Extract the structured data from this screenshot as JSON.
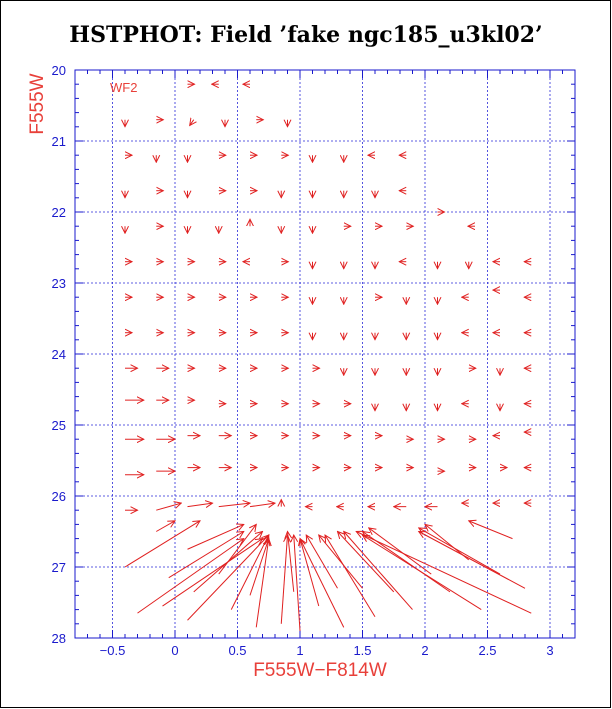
{
  "title": "HSTPHOT: Field ’fake ngc185_u3kl02’",
  "colors": {
    "axis": "#1a1acc",
    "grid": "#2a2ad8",
    "arrows": "#e02020",
    "labels": "#e8403a"
  },
  "chart_data": {
    "type": "scatter",
    "subtype": "vector-field",
    "title": "HSTPHOT: Field ’fake ngc185_u3kl02’",
    "panel_label": "WF2",
    "xlabel": "F555W−F814W",
    "ylabel": "F555W",
    "xlim": [
      -0.8,
      3.2
    ],
    "ylim": [
      28,
      20
    ],
    "y_inverted": true,
    "grid": true,
    "xticks": [
      -0.5,
      0,
      0.5,
      1,
      1.5,
      2,
      2.5,
      3
    ],
    "xtick_labels": [
      "−0.5",
      "0",
      "0.5",
      "1",
      "1.5",
      "2",
      "2.5",
      "3"
    ],
    "yticks": [
      20,
      21,
      22,
      23,
      24,
      25,
      26,
      27,
      28
    ],
    "ytick_labels": [
      "20",
      "21",
      "22",
      "23",
      "24",
      "25",
      "26",
      "27",
      "28"
    ],
    "vectors": [
      {
        "x": 0.1,
        "y": 20.2,
        "dx": 0.05,
        "dy": 0.0
      },
      {
        "x": 0.35,
        "y": 20.2,
        "dx": -0.05,
        "dy": 0.0
      },
      {
        "x": 0.6,
        "y": 20.2,
        "dx": -0.05,
        "dy": 0.0
      },
      {
        "x": -0.4,
        "y": 20.7,
        "dx": 0.0,
        "dy": 0.05
      },
      {
        "x": -0.15,
        "y": 20.7,
        "dx": 0.05,
        "dy": 0.0
      },
      {
        "x": 0.15,
        "y": 20.7,
        "dx": -0.02,
        "dy": 0.05
      },
      {
        "x": 0.4,
        "y": 20.7,
        "dx": 0.0,
        "dy": 0.05
      },
      {
        "x": 0.65,
        "y": 20.7,
        "dx": 0.05,
        "dy": 0.0
      },
      {
        "x": 0.9,
        "y": 20.7,
        "dx": 0.0,
        "dy": 0.05
      },
      {
        "x": -0.4,
        "y": 21.2,
        "dx": 0.05,
        "dy": 0.0
      },
      {
        "x": -0.15,
        "y": 21.2,
        "dx": 0.0,
        "dy": 0.05
      },
      {
        "x": 0.1,
        "y": 21.2,
        "dx": 0.0,
        "dy": 0.05
      },
      {
        "x": 0.35,
        "y": 21.2,
        "dx": 0.05,
        "dy": 0.0
      },
      {
        "x": 0.6,
        "y": 21.2,
        "dx": 0.05,
        "dy": 0.0
      },
      {
        "x": 0.85,
        "y": 21.2,
        "dx": 0.05,
        "dy": 0.0
      },
      {
        "x": 1.1,
        "y": 21.2,
        "dx": 0.0,
        "dy": 0.05
      },
      {
        "x": 1.35,
        "y": 21.2,
        "dx": 0.0,
        "dy": 0.05
      },
      {
        "x": 1.6,
        "y": 21.2,
        "dx": -0.05,
        "dy": 0.0
      },
      {
        "x": 1.85,
        "y": 21.2,
        "dx": -0.05,
        "dy": 0.0
      },
      {
        "x": -0.4,
        "y": 21.7,
        "dx": 0.0,
        "dy": 0.05
      },
      {
        "x": -0.15,
        "y": 21.7,
        "dx": 0.05,
        "dy": 0.0
      },
      {
        "x": 0.1,
        "y": 21.7,
        "dx": 0.0,
        "dy": 0.05
      },
      {
        "x": 0.35,
        "y": 21.7,
        "dx": 0.05,
        "dy": 0.0
      },
      {
        "x": 0.6,
        "y": 21.7,
        "dx": 0.05,
        "dy": 0.0
      },
      {
        "x": 0.85,
        "y": 21.7,
        "dx": 0.0,
        "dy": 0.05
      },
      {
        "x": 1.1,
        "y": 21.7,
        "dx": 0.0,
        "dy": 0.05
      },
      {
        "x": 1.35,
        "y": 21.7,
        "dx": 0.0,
        "dy": 0.05
      },
      {
        "x": 1.6,
        "y": 21.7,
        "dx": 0.0,
        "dy": 0.05
      },
      {
        "x": 1.85,
        "y": 21.7,
        "dx": -0.05,
        "dy": 0.0
      },
      {
        "x": -0.4,
        "y": 22.2,
        "dx": 0.0,
        "dy": 0.05
      },
      {
        "x": -0.15,
        "y": 22.2,
        "dx": 0.05,
        "dy": 0.0
      },
      {
        "x": 0.1,
        "y": 22.2,
        "dx": 0.0,
        "dy": 0.05
      },
      {
        "x": 0.35,
        "y": 22.2,
        "dx": 0.0,
        "dy": 0.05
      },
      {
        "x": 0.6,
        "y": 22.2,
        "dx": 0.0,
        "dy": -0.05
      },
      {
        "x": 0.85,
        "y": 22.2,
        "dx": 0.0,
        "dy": 0.05
      },
      {
        "x": 1.1,
        "y": 22.2,
        "dx": 0.0,
        "dy": 0.05
      },
      {
        "x": 1.35,
        "y": 22.2,
        "dx": 0.05,
        "dy": 0.0
      },
      {
        "x": 1.6,
        "y": 22.2,
        "dx": 0.05,
        "dy": 0.0
      },
      {
        "x": 1.85,
        "y": 22.2,
        "dx": 0.05,
        "dy": 0.0
      },
      {
        "x": 2.1,
        "y": 22.0,
        "dx": 0.05,
        "dy": 0.0
      },
      {
        "x": 2.4,
        "y": 22.2,
        "dx": -0.05,
        "dy": 0.0
      },
      {
        "x": -0.4,
        "y": 22.7,
        "dx": 0.05,
        "dy": 0.0
      },
      {
        "x": -0.15,
        "y": 22.7,
        "dx": 0.05,
        "dy": 0.0
      },
      {
        "x": 0.1,
        "y": 22.7,
        "dx": 0.05,
        "dy": 0.0
      },
      {
        "x": 0.35,
        "y": 22.7,
        "dx": 0.05,
        "dy": 0.0
      },
      {
        "x": 0.6,
        "y": 22.7,
        "dx": -0.05,
        "dy": 0.0
      },
      {
        "x": 0.85,
        "y": 22.7,
        "dx": 0.05,
        "dy": 0.0
      },
      {
        "x": 1.1,
        "y": 22.7,
        "dx": 0.0,
        "dy": 0.05
      },
      {
        "x": 1.35,
        "y": 22.7,
        "dx": 0.0,
        "dy": 0.05
      },
      {
        "x": 1.6,
        "y": 22.7,
        "dx": 0.0,
        "dy": 0.05
      },
      {
        "x": 1.85,
        "y": 22.7,
        "dx": -0.05,
        "dy": 0.0
      },
      {
        "x": 2.1,
        "y": 22.7,
        "dx": 0.0,
        "dy": 0.05
      },
      {
        "x": 2.35,
        "y": 22.7,
        "dx": 0.0,
        "dy": 0.05
      },
      {
        "x": 2.6,
        "y": 22.7,
        "dx": -0.05,
        "dy": 0.0
      },
      {
        "x": 2.85,
        "y": 22.7,
        "dx": -0.05,
        "dy": 0.0
      },
      {
        "x": -0.4,
        "y": 23.2,
        "dx": 0.05,
        "dy": 0.0
      },
      {
        "x": -0.15,
        "y": 23.2,
        "dx": 0.05,
        "dy": 0.0
      },
      {
        "x": 0.1,
        "y": 23.2,
        "dx": 0.05,
        "dy": 0.0
      },
      {
        "x": 0.35,
        "y": 23.2,
        "dx": 0.05,
        "dy": 0.0
      },
      {
        "x": 0.6,
        "y": 23.2,
        "dx": 0.05,
        "dy": 0.0
      },
      {
        "x": 0.85,
        "y": 23.2,
        "dx": 0.05,
        "dy": 0.0
      },
      {
        "x": 1.1,
        "y": 23.2,
        "dx": 0.0,
        "dy": 0.05
      },
      {
        "x": 1.35,
        "y": 23.2,
        "dx": 0.0,
        "dy": 0.05
      },
      {
        "x": 1.6,
        "y": 23.2,
        "dx": 0.05,
        "dy": 0.0
      },
      {
        "x": 1.85,
        "y": 23.2,
        "dx": 0.0,
        "dy": 0.05
      },
      {
        "x": 2.1,
        "y": 23.2,
        "dx": 0.0,
        "dy": 0.05
      },
      {
        "x": 2.35,
        "y": 23.2,
        "dx": -0.05,
        "dy": 0.0
      },
      {
        "x": 2.6,
        "y": 23.1,
        "dx": -0.05,
        "dy": 0.0
      },
      {
        "x": 2.85,
        "y": 23.2,
        "dx": -0.05,
        "dy": 0.0
      },
      {
        "x": -0.4,
        "y": 23.7,
        "dx": 0.05,
        "dy": 0.0
      },
      {
        "x": -0.15,
        "y": 23.7,
        "dx": 0.05,
        "dy": 0.0
      },
      {
        "x": 0.1,
        "y": 23.7,
        "dx": 0.05,
        "dy": 0.0
      },
      {
        "x": 0.35,
        "y": 23.7,
        "dx": 0.05,
        "dy": 0.0
      },
      {
        "x": 0.6,
        "y": 23.7,
        "dx": 0.05,
        "dy": 0.0
      },
      {
        "x": 0.85,
        "y": 23.7,
        "dx": 0.05,
        "dy": 0.0
      },
      {
        "x": 1.1,
        "y": 23.7,
        "dx": 0.0,
        "dy": 0.05
      },
      {
        "x": 1.35,
        "y": 23.7,
        "dx": 0.0,
        "dy": 0.05
      },
      {
        "x": 1.6,
        "y": 23.7,
        "dx": 0.0,
        "dy": 0.05
      },
      {
        "x": 1.85,
        "y": 23.7,
        "dx": 0.0,
        "dy": 0.05
      },
      {
        "x": 2.1,
        "y": 23.7,
        "dx": 0.0,
        "dy": 0.05
      },
      {
        "x": 2.35,
        "y": 23.7,
        "dx": -0.05,
        "dy": 0.0
      },
      {
        "x": 2.6,
        "y": 23.7,
        "dx": -0.05,
        "dy": 0.0
      },
      {
        "x": 2.85,
        "y": 23.7,
        "dx": -0.05,
        "dy": 0.0
      },
      {
        "x": -0.4,
        "y": 24.2,
        "dx": 0.1,
        "dy": 0.0
      },
      {
        "x": -0.15,
        "y": 24.2,
        "dx": 0.1,
        "dy": 0.0
      },
      {
        "x": 0.1,
        "y": 24.2,
        "dx": 0.05,
        "dy": 0.0
      },
      {
        "x": 0.35,
        "y": 24.2,
        "dx": 0.05,
        "dy": 0.0
      },
      {
        "x": 0.6,
        "y": 24.2,
        "dx": 0.05,
        "dy": 0.0
      },
      {
        "x": 0.85,
        "y": 24.2,
        "dx": 0.05,
        "dy": 0.0
      },
      {
        "x": 1.1,
        "y": 24.2,
        "dx": 0.05,
        "dy": 0.0
      },
      {
        "x": 1.35,
        "y": 24.2,
        "dx": 0.0,
        "dy": 0.05
      },
      {
        "x": 1.6,
        "y": 24.2,
        "dx": 0.0,
        "dy": 0.05
      },
      {
        "x": 1.85,
        "y": 24.2,
        "dx": 0.0,
        "dy": 0.05
      },
      {
        "x": 2.1,
        "y": 24.2,
        "dx": 0.0,
        "dy": 0.05
      },
      {
        "x": 2.35,
        "y": 24.2,
        "dx": 0.05,
        "dy": 0.0
      },
      {
        "x": 2.6,
        "y": 24.2,
        "dx": 0.0,
        "dy": 0.05
      },
      {
        "x": 2.85,
        "y": 24.2,
        "dx": -0.05,
        "dy": 0.0
      },
      {
        "x": -0.4,
        "y": 24.65,
        "dx": 0.15,
        "dy": 0.0
      },
      {
        "x": -0.15,
        "y": 24.65,
        "dx": 0.1,
        "dy": 0.0
      },
      {
        "x": 0.1,
        "y": 24.65,
        "dx": 0.05,
        "dy": 0.0
      },
      {
        "x": 0.35,
        "y": 24.7,
        "dx": 0.05,
        "dy": 0.0
      },
      {
        "x": 0.6,
        "y": 24.7,
        "dx": 0.05,
        "dy": 0.0
      },
      {
        "x": 0.85,
        "y": 24.7,
        "dx": 0.05,
        "dy": 0.0
      },
      {
        "x": 1.1,
        "y": 24.7,
        "dx": 0.05,
        "dy": 0.0
      },
      {
        "x": 1.35,
        "y": 24.7,
        "dx": 0.05,
        "dy": 0.0
      },
      {
        "x": 1.6,
        "y": 24.7,
        "dx": 0.0,
        "dy": 0.05
      },
      {
        "x": 1.85,
        "y": 24.7,
        "dx": 0.0,
        "dy": 0.05
      },
      {
        "x": 2.1,
        "y": 24.7,
        "dx": 0.0,
        "dy": 0.05
      },
      {
        "x": 2.35,
        "y": 24.7,
        "dx": -0.05,
        "dy": 0.0
      },
      {
        "x": 2.6,
        "y": 24.7,
        "dx": 0.0,
        "dy": 0.05
      },
      {
        "x": 2.85,
        "y": 24.7,
        "dx": -0.05,
        "dy": 0.0
      },
      {
        "x": -0.4,
        "y": 25.2,
        "dx": 0.15,
        "dy": 0.0
      },
      {
        "x": -0.15,
        "y": 25.2,
        "dx": 0.15,
        "dy": 0.0
      },
      {
        "x": 0.1,
        "y": 25.15,
        "dx": 0.1,
        "dy": 0.0
      },
      {
        "x": 0.35,
        "y": 25.15,
        "dx": 0.1,
        "dy": 0.0
      },
      {
        "x": 0.6,
        "y": 25.15,
        "dx": 0.05,
        "dy": 0.0
      },
      {
        "x": 0.85,
        "y": 25.15,
        "dx": 0.05,
        "dy": 0.0
      },
      {
        "x": 1.1,
        "y": 25.15,
        "dx": 0.05,
        "dy": 0.0
      },
      {
        "x": 1.35,
        "y": 25.15,
        "dx": 0.05,
        "dy": 0.0
      },
      {
        "x": 1.6,
        "y": 25.15,
        "dx": 0.05,
        "dy": 0.0
      },
      {
        "x": 1.85,
        "y": 25.2,
        "dx": 0.05,
        "dy": 0.0
      },
      {
        "x": 2.1,
        "y": 25.2,
        "dx": 0.05,
        "dy": 0.0
      },
      {
        "x": 2.35,
        "y": 25.2,
        "dx": 0.05,
        "dy": 0.0
      },
      {
        "x": 2.6,
        "y": 25.15,
        "dx": -0.05,
        "dy": 0.0
      },
      {
        "x": 2.85,
        "y": 25.1,
        "dx": -0.05,
        "dy": 0.0
      },
      {
        "x": -0.4,
        "y": 25.7,
        "dx": 0.15,
        "dy": 0.0
      },
      {
        "x": -0.15,
        "y": 25.65,
        "dx": 0.15,
        "dy": 0.0
      },
      {
        "x": 0.1,
        "y": 25.6,
        "dx": 0.1,
        "dy": 0.0
      },
      {
        "x": 0.35,
        "y": 25.6,
        "dx": 0.1,
        "dy": 0.0
      },
      {
        "x": 0.6,
        "y": 25.6,
        "dx": 0.05,
        "dy": 0.0
      },
      {
        "x": 0.85,
        "y": 25.6,
        "dx": 0.05,
        "dy": 0.0
      },
      {
        "x": 1.1,
        "y": 25.6,
        "dx": 0.05,
        "dy": 0.0
      },
      {
        "x": 1.35,
        "y": 25.6,
        "dx": 0.05,
        "dy": 0.0
      },
      {
        "x": 1.6,
        "y": 25.6,
        "dx": 0.05,
        "dy": 0.0
      },
      {
        "x": 1.85,
        "y": 25.6,
        "dx": 0.05,
        "dy": 0.0
      },
      {
        "x": 2.1,
        "y": 25.65,
        "dx": 0.05,
        "dy": 0.0
      },
      {
        "x": 2.35,
        "y": 25.6,
        "dx": 0.05,
        "dy": 0.0
      },
      {
        "x": 2.6,
        "y": 25.6,
        "dx": 0.05,
        "dy": 0.0
      },
      {
        "x": 2.85,
        "y": 25.6,
        "dx": -0.05,
        "dy": 0.0
      },
      {
        "x": -0.4,
        "y": 26.2,
        "dx": 0.1,
        "dy": 0.0
      },
      {
        "x": -0.15,
        "y": 26.2,
        "dx": 0.2,
        "dy": -0.1
      },
      {
        "x": 0.1,
        "y": 26.15,
        "dx": 0.2,
        "dy": -0.05
      },
      {
        "x": 0.35,
        "y": 26.15,
        "dx": 0.25,
        "dy": -0.05
      },
      {
        "x": 0.6,
        "y": 26.15,
        "dx": 0.2,
        "dy": -0.05
      },
      {
        "x": 0.85,
        "y": 26.15,
        "dx": 0.0,
        "dy": -0.05
      },
      {
        "x": 1.1,
        "y": 26.15,
        "dx": -0.05,
        "dy": 0.0
      },
      {
        "x": 1.35,
        "y": 26.15,
        "dx": -0.05,
        "dy": 0.0
      },
      {
        "x": 1.6,
        "y": 26.15,
        "dx": -0.05,
        "dy": 0.0
      },
      {
        "x": 1.85,
        "y": 26.15,
        "dx": -0.1,
        "dy": 0.0
      },
      {
        "x": 2.1,
        "y": 26.15,
        "dx": -0.1,
        "dy": 0.0
      },
      {
        "x": 2.35,
        "y": 26.1,
        "dx": -0.05,
        "dy": 0.0
      },
      {
        "x": 2.6,
        "y": 26.1,
        "dx": -0.05,
        "dy": 0.0
      },
      {
        "x": 2.85,
        "y": 26.1,
        "dx": -0.05,
        "dy": 0.0
      },
      {
        "x": -0.4,
        "y": 27.0,
        "dx": 0.6,
        "dy": -0.65
      },
      {
        "x": -0.3,
        "y": 27.65,
        "dx": 0.85,
        "dy": -1.05
      },
      {
        "x": -0.15,
        "y": 26.5,
        "dx": 0.15,
        "dy": -0.15
      },
      {
        "x": -0.05,
        "y": 27.15,
        "dx": 0.6,
        "dy": -0.65
      },
      {
        "x": -0.1,
        "y": 27.55,
        "dx": 0.8,
        "dy": -0.95
      },
      {
        "x": 0.1,
        "y": 26.75,
        "dx": 0.45,
        "dy": -0.35
      },
      {
        "x": 0.15,
        "y": 27.35,
        "dx": 0.55,
        "dy": -0.85
      },
      {
        "x": 0.1,
        "y": 27.75,
        "dx": 0.65,
        "dy": -1.2
      },
      {
        "x": 0.35,
        "y": 27.1,
        "dx": 0.3,
        "dy": -0.7
      },
      {
        "x": 0.45,
        "y": 27.6,
        "dx": 0.3,
        "dy": -1.05
      },
      {
        "x": 0.6,
        "y": 27.4,
        "dx": 0.15,
        "dy": -0.8
      },
      {
        "x": 0.65,
        "y": 27.85,
        "dx": 0.1,
        "dy": -1.25
      },
      {
        "x": 0.85,
        "y": 27.8,
        "dx": 0.05,
        "dy": -1.25
      },
      {
        "x": 0.95,
        "y": 27.35,
        "dx": -0.05,
        "dy": -0.85
      },
      {
        "x": 1.0,
        "y": 27.9,
        "dx": -0.05,
        "dy": -1.35
      },
      {
        "x": 1.15,
        "y": 27.55,
        "dx": -0.15,
        "dy": -0.95
      },
      {
        "x": 1.3,
        "y": 27.3,
        "dx": -0.25,
        "dy": -0.75
      },
      {
        "x": 1.35,
        "y": 27.85,
        "dx": -0.35,
        "dy": -1.25
      },
      {
        "x": 1.5,
        "y": 27.3,
        "dx": -0.35,
        "dy": -0.75
      },
      {
        "x": 1.6,
        "y": 27.7,
        "dx": -0.4,
        "dy": -1.15
      },
      {
        "x": 1.75,
        "y": 27.35,
        "dx": -0.45,
        "dy": -0.85
      },
      {
        "x": 1.9,
        "y": 27.6,
        "dx": -0.55,
        "dy": -1.1
      },
      {
        "x": 2.05,
        "y": 27.1,
        "dx": -0.5,
        "dy": -0.65
      },
      {
        "x": 2.2,
        "y": 27.35,
        "dx": -0.7,
        "dy": -0.85
      },
      {
        "x": 2.35,
        "y": 26.9,
        "dx": -0.35,
        "dy": -0.5
      },
      {
        "x": 2.45,
        "y": 27.6,
        "dx": -0.95,
        "dy": -1.05
      },
      {
        "x": 2.6,
        "y": 27.1,
        "dx": -0.65,
        "dy": -0.65
      },
      {
        "x": 2.7,
        "y": 26.6,
        "dx": -0.35,
        "dy": -0.25
      },
      {
        "x": 2.85,
        "y": 27.65,
        "dx": -1.4,
        "dy": -1.15
      },
      {
        "x": 2.8,
        "y": 27.3,
        "dx": -0.85,
        "dy": -0.8
      }
    ]
  }
}
